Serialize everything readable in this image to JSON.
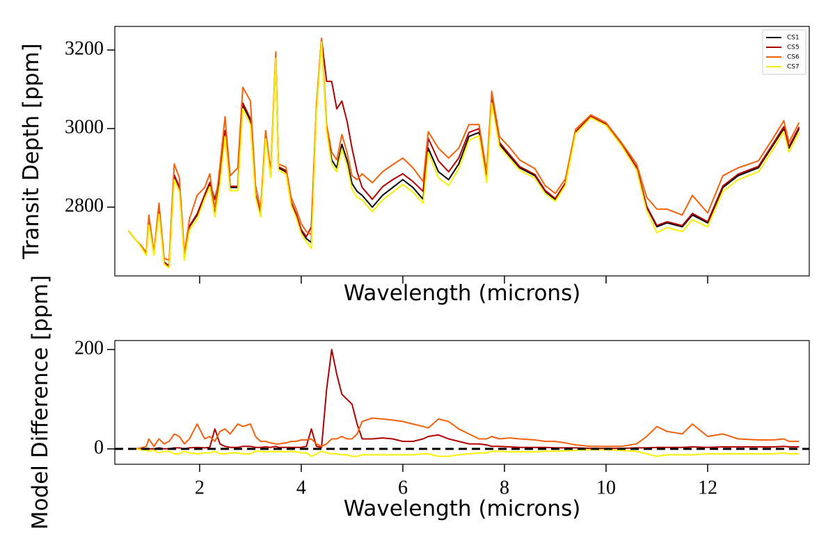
{
  "chart_data": [
    {
      "type": "line",
      "xlabel": "Wavelength (microns)",
      "ylabel": "Transit Depth [ppm]",
      "xlim": [
        0.33,
        14.0
      ],
      "ylim": [
        2625,
        3260
      ],
      "xticks": [
        2,
        4,
        6,
        8,
        10,
        12
      ],
      "xtick_labels": false,
      "yticks": [
        2800,
        3000,
        3200
      ],
      "legend": "upper right",
      "x": [
        0.6,
        0.75,
        0.85,
        0.95,
        1.0,
        1.1,
        1.2,
        1.3,
        1.4,
        1.5,
        1.6,
        1.7,
        1.8,
        1.95,
        2.1,
        2.2,
        2.3,
        2.4,
        2.5,
        2.6,
        2.75,
        2.85,
        3.0,
        3.1,
        3.2,
        3.3,
        3.4,
        3.5,
        3.55,
        3.7,
        3.8,
        3.9,
        4.0,
        4.1,
        4.2,
        4.3,
        4.4,
        4.5,
        4.6,
        4.7,
        4.8,
        4.9,
        5.0,
        5.1,
        5.2,
        5.4,
        5.6,
        5.8,
        6.0,
        6.2,
        6.4,
        6.5,
        6.7,
        6.9,
        7.1,
        7.3,
        7.5,
        7.65,
        7.75,
        7.9,
        8.1,
        8.3,
        8.6,
        8.8,
        9.0,
        9.2,
        9.4,
        9.7,
        10.0,
        10.3,
        10.6,
        10.8,
        11.0,
        11.2,
        11.5,
        11.7,
        12.0,
        12.3,
        12.6,
        13.0,
        13.3,
        13.5,
        13.6,
        13.8
      ],
      "series": [
        {
          "name": "CS1",
          "color": "#000000",
          "values": [
            2740,
            2715,
            2700,
            2680,
            2760,
            2680,
            2790,
            2660,
            2650,
            2880,
            2850,
            2670,
            2750,
            2780,
            2830,
            2860,
            2780,
            2870,
            2990,
            2850,
            2850,
            3060,
            3020,
            2830,
            2780,
            2980,
            2880,
            3185,
            2900,
            2890,
            2810,
            2780,
            2740,
            2720,
            2710,
            3050,
            3225,
            3000,
            2920,
            2900,
            2960,
            2920,
            2860,
            2840,
            2830,
            2800,
            2830,
            2850,
            2870,
            2850,
            2820,
            2950,
            2890,
            2870,
            2910,
            2980,
            2990,
            2870,
            3070,
            2960,
            2930,
            2900,
            2880,
            2840,
            2820,
            2860,
            2990,
            3030,
            3010,
            2960,
            2900,
            2800,
            2750,
            2760,
            2750,
            2780,
            2760,
            2850,
            2880,
            2900,
            2960,
            3000,
            2950,
            3000
          ]
        },
        {
          "name": "CS5",
          "color": "#b00000",
          "values": [
            2740,
            2715,
            2700,
            2680,
            2760,
            2680,
            2792,
            2660,
            2650,
            2882,
            2852,
            2670,
            2752,
            2783,
            2832,
            2863,
            2820,
            2880,
            2995,
            2853,
            2853,
            3065,
            3025,
            2833,
            2783,
            2984,
            2883,
            3190,
            2903,
            2893,
            2813,
            2783,
            2743,
            2725,
            2750,
            3055,
            3228,
            3120,
            3120,
            3050,
            3070,
            3020,
            2950,
            2890,
            2850,
            2820,
            2852,
            2870,
            2885,
            2865,
            2840,
            2975,
            2918,
            2890,
            2925,
            2990,
            3000,
            2878,
            3075,
            2965,
            2934,
            2903,
            2883,
            2843,
            2822,
            2862,
            2992,
            3031,
            3011,
            2961,
            2902,
            2802,
            2753,
            2763,
            2753,
            2784,
            2763,
            2854,
            2884,
            2904,
            2964,
            3005,
            2954,
            3004
          ]
        },
        {
          "name": "CS6",
          "color": "#f5600a",
          "values": [
            2740,
            2715,
            2702,
            2685,
            2780,
            2685,
            2810,
            2670,
            2665,
            2910,
            2875,
            2680,
            2770,
            2830,
            2850,
            2885,
            2795,
            2905,
            3030,
            2880,
            2900,
            3105,
            3070,
            2855,
            2795,
            2995,
            2892,
            3195,
            2910,
            2902,
            2825,
            2795,
            2758,
            2738,
            2730,
            3060,
            3230,
            3010,
            2940,
            2920,
            2985,
            2940,
            2880,
            2870,
            2885,
            2862,
            2890,
            2908,
            2925,
            2900,
            2865,
            2992,
            2950,
            2925,
            2950,
            3010,
            3010,
            2890,
            3095,
            2980,
            2952,
            2920,
            2898,
            2855,
            2835,
            2872,
            2998,
            3035,
            3015,
            2965,
            2910,
            2825,
            2795,
            2795,
            2780,
            2830,
            2785,
            2880,
            2900,
            2918,
            2978,
            3020,
            2965,
            3015
          ]
        },
        {
          "name": "CS7",
          "color": "#f8f000",
          "values": [
            2740,
            2715,
            2698,
            2677,
            2755,
            2677,
            2782,
            2655,
            2645,
            2870,
            2840,
            2665,
            2742,
            2770,
            2822,
            2852,
            2775,
            2860,
            2980,
            2842,
            2842,
            3050,
            3010,
            2825,
            2775,
            2974,
            2875,
            3179,
            2895,
            2884,
            2805,
            2774,
            2732,
            2712,
            2695,
            3040,
            3220,
            2992,
            2910,
            2890,
            2948,
            2908,
            2845,
            2825,
            2818,
            2788,
            2818,
            2838,
            2858,
            2838,
            2810,
            2940,
            2875,
            2855,
            2898,
            2970,
            2982,
            2862,
            3065,
            2955,
            2924,
            2894,
            2874,
            2835,
            2815,
            2856,
            2987,
            3028,
            3008,
            2957,
            2895,
            2790,
            2735,
            2748,
            2738,
            2768,
            2750,
            2840,
            2870,
            2890,
            2950,
            2992,
            2940,
            2990
          ]
        }
      ]
    },
    {
      "type": "line",
      "xlabel": "Wavelength (microns)",
      "ylabel": "Model Difference [ppm]",
      "xlim": [
        0.33,
        14.0
      ],
      "ylim": [
        -31,
        218
      ],
      "xticks": [
        2,
        4,
        6,
        8,
        10,
        12
      ],
      "xtick_labels": true,
      "yticks": [
        0,
        200
      ],
      "reference_line": {
        "value": 0,
        "color": "#000000",
        "style": "dashed"
      },
      "x": [
        0.6,
        0.75,
        0.85,
        0.95,
        1.0,
        1.1,
        1.2,
        1.3,
        1.4,
        1.5,
        1.6,
        1.7,
        1.8,
        1.95,
        2.1,
        2.2,
        2.3,
        2.4,
        2.5,
        2.6,
        2.75,
        2.85,
        3.0,
        3.1,
        3.2,
        3.3,
        3.4,
        3.5,
        3.55,
        3.7,
        3.8,
        3.9,
        4.0,
        4.1,
        4.2,
        4.3,
        4.4,
        4.5,
        4.6,
        4.7,
        4.8,
        4.9,
        5.0,
        5.1,
        5.2,
        5.4,
        5.6,
        5.8,
        6.0,
        6.2,
        6.4,
        6.5,
        6.7,
        6.9,
        7.1,
        7.3,
        7.5,
        7.65,
        7.75,
        7.9,
        8.1,
        8.3,
        8.6,
        8.8,
        9.0,
        9.2,
        9.4,
        9.7,
        10.0,
        10.3,
        10.6,
        10.8,
        11.0,
        11.2,
        11.5,
        11.7,
        12.0,
        12.3,
        12.6,
        13.0,
        13.3,
        13.5,
        13.6,
        13.8
      ],
      "series": [
        {
          "color": "#b00000",
          "values": [
            0,
            0,
            0,
            0,
            0,
            0,
            2,
            0,
            0,
            2,
            2,
            0,
            2,
            3,
            2,
            3,
            40,
            10,
            5,
            3,
            3,
            5,
            5,
            3,
            3,
            4,
            3,
            5,
            3,
            3,
            3,
            3,
            3,
            5,
            40,
            5,
            3,
            120,
            200,
            150,
            110,
            100,
            90,
            50,
            20,
            20,
            22,
            20,
            15,
            15,
            20,
            25,
            28,
            20,
            15,
            10,
            10,
            8,
            5,
            5,
            4,
            3,
            3,
            3,
            2,
            2,
            2,
            1,
            1,
            1,
            2,
            2,
            3,
            3,
            3,
            4,
            3,
            4,
            4,
            4,
            4,
            5,
            4,
            4
          ]
        },
        {
          "color": "#f5600a",
          "values": [
            0,
            0,
            2,
            5,
            20,
            5,
            20,
            10,
            15,
            30,
            25,
            10,
            20,
            50,
            20,
            25,
            15,
            35,
            40,
            30,
            50,
            45,
            50,
            25,
            15,
            15,
            12,
            10,
            10,
            12,
            15,
            15,
            18,
            18,
            20,
            10,
            5,
            10,
            20,
            20,
            25,
            20,
            20,
            30,
            55,
            62,
            60,
            58,
            55,
            50,
            45,
            42,
            60,
            55,
            40,
            30,
            20,
            20,
            25,
            20,
            22,
            20,
            18,
            15,
            15,
            12,
            8,
            5,
            5,
            5,
            10,
            25,
            45,
            35,
            30,
            50,
            25,
            30,
            20,
            18,
            18,
            20,
            15,
            15
          ]
        },
        {
          "color": "#f8f000",
          "values": [
            0,
            0,
            -2,
            -3,
            -5,
            -3,
            -8,
            -5,
            -5,
            -10,
            -10,
            -5,
            -8,
            -10,
            -8,
            -8,
            -5,
            -10,
            -10,
            -8,
            -8,
            -10,
            -10,
            -5,
            -5,
            -6,
            -5,
            -6,
            -5,
            -6,
            -5,
            -6,
            -8,
            -8,
            -15,
            -10,
            -5,
            -8,
            -10,
            -10,
            -12,
            -12,
            -15,
            -15,
            -12,
            -12,
            -12,
            -12,
            -12,
            -12,
            -10,
            -10,
            -15,
            -15,
            -12,
            -10,
            -8,
            -8,
            -5,
            -5,
            -6,
            -6,
            -6,
            -5,
            -5,
            -4,
            -3,
            -2,
            -2,
            -3,
            -5,
            -10,
            -15,
            -12,
            -12,
            -12,
            -10,
            -10,
            -10,
            -10,
            -10,
            -8,
            -10,
            -10
          ]
        }
      ]
    }
  ]
}
